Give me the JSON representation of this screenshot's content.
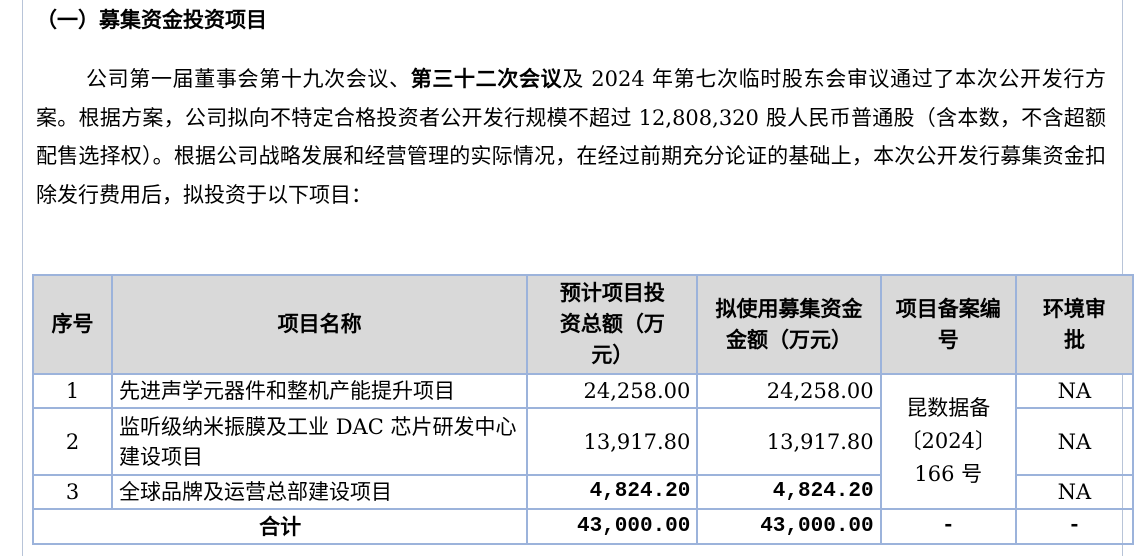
{
  "section_title": "（一）募集资金投资项目",
  "paragraph": {
    "part1": "公司第一届董事会第十九次会议、",
    "bold": "第三十二次会议",
    "part2": "及 2024 年第七次临时股东会审议通过了本次公开发行方案。根据方案，公司拟向不特定合格投资者公开发行规模不超过 12,808,320 股人民币普通股（含本数，不含超额配售选择权）。根据公司战略发展和经营管理的实际情况，在经过前期充分论证的基础上，本次公开发行募集资金扣除发行费用后，拟投资于以下项目："
  },
  "table": {
    "headers": [
      "序号",
      "项目名称",
      "预计项目投资总额（万元）",
      "拟使用募集资金金额（万元）",
      "项目备案编号",
      "环境审批"
    ],
    "rows": [
      {
        "no": "1",
        "name": "先进声学元器件和整机产能提升项目",
        "total": "24,258.00",
        "raised": "24,258.00",
        "env": "NA"
      },
      {
        "no": "2",
        "name": "监听级纳米振膜及工业 DAC 芯片研发中心建设项目",
        "total": "13,917.80",
        "raised": "13,917.80",
        "env": "NA"
      },
      {
        "no": "3",
        "name": "全球品牌及运营总部建设项目",
        "total": "4,824.20",
        "raised": "4,824.20",
        "env": "NA"
      }
    ],
    "filing_no": "昆数据备〔2024〕166 号",
    "total_row": {
      "label": "合计",
      "total": "43,000.00",
      "raised": "43,000.00",
      "filing": "-",
      "env": "-"
    }
  }
}
